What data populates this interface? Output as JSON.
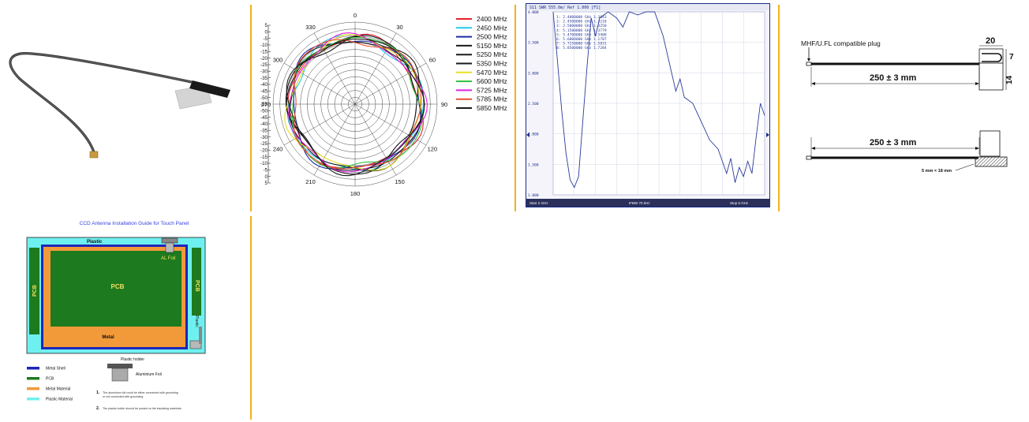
{
  "colors": {
    "divider": "#f2b21a",
    "vna_border": "#1a2e8a",
    "vna_trace": "#2a3b9a"
  },
  "polar": {
    "angle_labels": [
      "0",
      "30",
      "60",
      "90",
      "120",
      "150",
      "180",
      "210",
      "240",
      "270",
      "300",
      "330"
    ],
    "scale_labels": [
      "5",
      "0",
      "-5",
      "-10",
      "-15",
      "-20",
      "-25",
      "-30",
      "-35",
      "-40",
      "-45",
      "-50",
      "-55",
      "-50",
      "-45",
      "-40",
      "-35",
      "-30",
      "-25",
      "-20",
      "-15",
      "-10",
      "-5",
      "0",
      "5"
    ],
    "legend": [
      {
        "label": "2400 MHz",
        "color": "#e8202a"
      },
      {
        "label": "2450 MHz",
        "color": "#22c8e8"
      },
      {
        "label": "2500 MHz",
        "color": "#1c2aa8"
      },
      {
        "label": "5150 MHz",
        "color": "#1a1a1a"
      },
      {
        "label": "5250 MHz",
        "color": "#1a1a1a"
      },
      {
        "label": "5350 MHz",
        "color": "#1a1a1a"
      },
      {
        "label": "5470 MHz",
        "color": "#e8e020"
      },
      {
        "label": "5600 MHz",
        "color": "#30c040"
      },
      {
        "label": "5725 MHz",
        "color": "#e020e0"
      },
      {
        "label": "5785 MHz",
        "color": "#e85030"
      },
      {
        "label": "5850 MHz",
        "color": "#1a1a1a"
      }
    ]
  },
  "vna": {
    "header": "S11  SWR  555.0m/ Ref  1.000  [F1]",
    "markers": [
      "1:  2.4000000 GHz   1.3843",
      "2:  2.4500000 GHz   1.3218",
      "3:  2.5000000 GHz   1.3250",
      "4:  5.1500000 GHz   1.3779",
      "5:  5.4700000 GHz   1.5408",
      "6:  5.6000000 GHz   1.1787",
      "7:  5.7250000 GHz   1.5831",
      "8:  5.8500000 GHz   1.7284"
    ],
    "yticks": [
      "4.000",
      "3.500",
      "3.000",
      "2.500",
      "2.000",
      "1.500",
      "1.000"
    ],
    "footer_left": "Start 2 GHz",
    "footer_mid": "IFBW 70 kHz",
    "footer_right": "Stop 6 GHz"
  },
  "drawing": {
    "plug_label": "MHF/U.FL compatible plug",
    "width_label": "20",
    "height7": "7",
    "height14": "14",
    "length_top": "250 ± 3 mm",
    "length_bottom": "250 ± 3 mm",
    "foam_label": "5 mm × 18 mm"
  },
  "guide": {
    "title": "CCD Antenna Installation Guide for Touch Panel",
    "plastic_top": "Plastic",
    "al_foil": "AL Foil",
    "pcb_main": "PCB",
    "pcb_left": "PCB",
    "pcb_right": "PCB",
    "plastic_right": "Plastic",
    "metal": "Metal",
    "legend": [
      {
        "label": "Metal Shell",
        "color": "#1f25b8"
      },
      {
        "label": "PCB",
        "color": "#1e7a1e"
      },
      {
        "label": "Metal Material",
        "color": "#f29a3a"
      },
      {
        "label": "Plastic Material",
        "color": "#6ff0f0"
      }
    ],
    "holder_title": "Plastic holder",
    "aluminium_foil": "Aluminium Foil",
    "note1_num": "1.",
    "note1": "The aluminium foil could be either connected with grounding or not connected with grounding.",
    "note2_num": "2.",
    "note2": "The plastic holder should be posted on the insulating materials."
  }
}
